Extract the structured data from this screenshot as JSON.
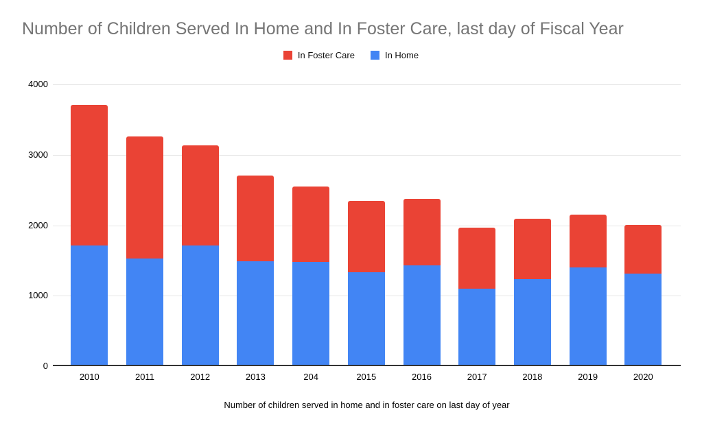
{
  "title": "Number of Children Served In Home and In Foster Care, last day of Fiscal Year",
  "legend": {
    "items": [
      {
        "label": "In Foster Care",
        "color": "#EA4335"
      },
      {
        "label": "In Home",
        "color": "#4285F4"
      }
    ]
  },
  "caption": "Number of children served in home and in foster care on last day of year",
  "chart_data": {
    "type": "bar",
    "stacked": true,
    "title": "Number of Children Served In Home and In Foster Care, last day of Fiscal Year",
    "xlabel": "Number of children served in home and in foster care on last day of year",
    "ylabel": "",
    "categories": [
      "2010",
      "2011",
      "2012",
      "2013",
      "204",
      "2015",
      "2016",
      "2017",
      "2018",
      "2019",
      "2020"
    ],
    "series": [
      {
        "name": "In Home",
        "color": "#4285F4",
        "values": [
          1690,
          1510,
          1690,
          1470,
          1460,
          1310,
          1410,
          1080,
          1220,
          1380,
          1290
        ]
      },
      {
        "name": "In Foster Care",
        "color": "#EA4335",
        "values": [
          2000,
          1730,
          1420,
          1220,
          1070,
          1020,
          950,
          870,
          850,
          750,
          700
        ]
      }
    ],
    "totals": [
      3690,
      3240,
      3110,
      2690,
      2530,
      2330,
      2360,
      1950,
      2070,
      2130,
      1990
    ],
    "ylim": [
      0,
      4000
    ],
    "yticks": [
      0,
      1000,
      2000,
      3000,
      4000
    ],
    "grid": true,
    "legend_position": "top",
    "colors": {
      "background": "#FFFFFF",
      "grid": "#E6E6E6",
      "axis": "#333333",
      "title_text": "#757575",
      "tick_text": "#000000"
    }
  }
}
